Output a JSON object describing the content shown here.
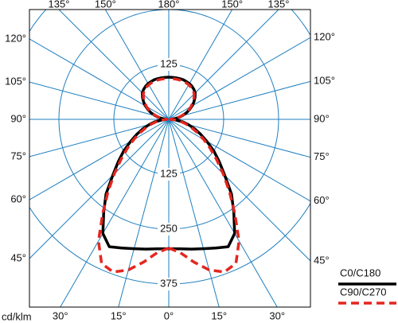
{
  "chart_data": {
    "type": "polar",
    "angles": [
      0,
      5,
      10,
      15,
      20,
      25,
      30,
      35,
      40,
      45,
      50,
      55,
      60,
      65,
      70,
      75,
      80,
      85,
      90,
      95,
      100,
      105,
      110,
      115,
      120,
      125,
      130,
      135,
      140,
      145,
      150,
      155,
      160,
      165,
      170,
      175,
      180
    ],
    "series": [
      {
        "name": "C0/C180",
        "color": "#000000",
        "dashed": false,
        "values": [
          295,
          296,
          300,
          305,
          312,
          320,
          300,
          258,
          222,
          180,
          150,
          125,
          100,
          80,
          62,
          46,
          32,
          18,
          5,
          12,
          22,
          32,
          42,
          52,
          62,
          70,
          78,
          85,
          89,
          92,
          94,
          95,
          96,
          96,
          96,
          96,
          96
        ]
      },
      {
        "name": "C90/C270",
        "color": "#e3261f",
        "dashed": true,
        "values": [
          293,
          305,
          330,
          355,
          370,
          362,
          320,
          262,
          215,
          175,
          142,
          115,
          92,
          72,
          55,
          40,
          27,
          14,
          4,
          10,
          20,
          30,
          40,
          50,
          59,
          67,
          75,
          82,
          86,
          89,
          91,
          92,
          93,
          93,
          93,
          93,
          93
        ]
      }
    ],
    "rlim": [
      0,
      375
    ],
    "rticks": [
      125,
      250,
      375
    ],
    "angle_ticks": [
      {
        "value": -135,
        "label": "135°"
      },
      {
        "value": -150,
        "label": "150°"
      },
      {
        "value": 180,
        "label": "180°"
      },
      {
        "value": 150,
        "label": "150°"
      },
      {
        "value": 135,
        "label": "135°"
      },
      {
        "value": -120,
        "label": "120°"
      },
      {
        "value": -105,
        "label": "105°"
      },
      {
        "value": -90,
        "label": "90°"
      },
      {
        "value": -75,
        "label": "75°"
      },
      {
        "value": -60,
        "label": "60°"
      },
      {
        "value": -45,
        "label": "45°"
      },
      {
        "value": 120,
        "label": "120°"
      },
      {
        "value": 105,
        "label": "105°"
      },
      {
        "value": 90,
        "label": "90°"
      },
      {
        "value": 75,
        "label": "75°"
      },
      {
        "value": 60,
        "label": "60°"
      },
      {
        "value": 45,
        "label": "45°"
      },
      {
        "value": -30,
        "label": "30°"
      },
      {
        "value": -15,
        "label": "15°"
      },
      {
        "value": 0,
        "label": "0°"
      },
      {
        "value": 15,
        "label": "15°"
      },
      {
        "value": 30,
        "label": "30°"
      }
    ],
    "unit_label": "cd/klm"
  }
}
